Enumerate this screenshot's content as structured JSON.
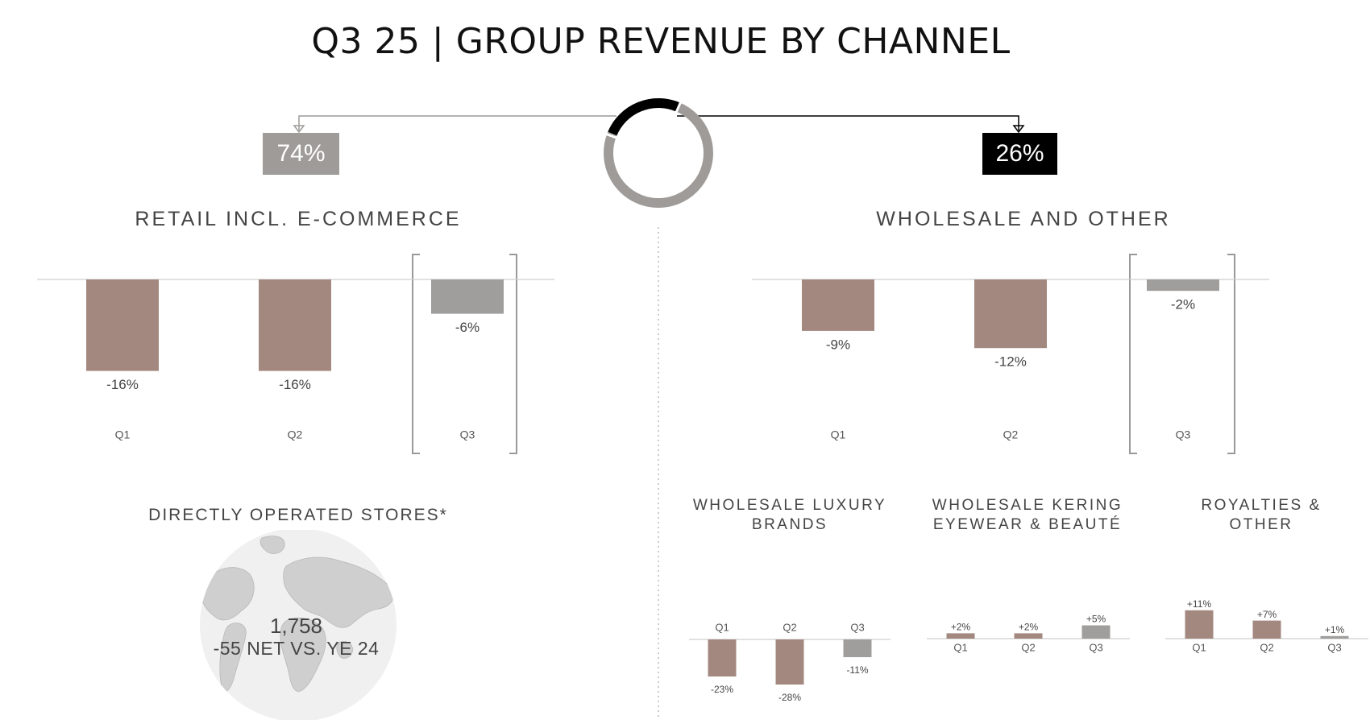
{
  "title": "Q3 25 | GROUP REVENUE BY CHANNEL",
  "colors": {
    "past": "#a3887f",
    "current": "#a09e9c",
    "retail_share": "#9e9b98",
    "wholesale_share": "#000000"
  },
  "split": {
    "retail_pct": "74%",
    "wholesale_pct": "26%",
    "retail_share": 74,
    "wholesale_share": 26
  },
  "retail": {
    "title": "RETAIL INCL. E-COMMERCE"
  },
  "wholesale": {
    "title": "WHOLESALE AND OTHER"
  },
  "stores": {
    "title": "DIRECTLY OPERATED STORES*",
    "count": "1,758",
    "net": "-55 NET VS. YE 24"
  },
  "sub": {
    "luxury": "WHOLESALE LUXURY BRANDS",
    "eyewear": "WHOLESALE KERING EYEWEAR & BEAUTÉ",
    "royalties": "ROYALTIES & OTHER"
  },
  "chart_data": [
    {
      "type": "bar",
      "name_ref": "retail",
      "categories": [
        "Q1",
        "Q2",
        "Q3"
      ],
      "values": [
        -16,
        -16,
        -6
      ],
      "labels": [
        "-16%",
        "-16%",
        "-6%"
      ],
      "highlight": "Q3"
    },
    {
      "type": "bar",
      "name_ref": "wholesale",
      "categories": [
        "Q1",
        "Q2",
        "Q3"
      ],
      "values": [
        -9,
        -12,
        -2
      ],
      "labels": [
        "-9%",
        "-12%",
        "-2%"
      ],
      "highlight": "Q3"
    },
    {
      "type": "bar",
      "name_ref": "luxury",
      "categories": [
        "Q1",
        "Q2",
        "Q3"
      ],
      "values": [
        -23,
        -28,
        -11
      ],
      "labels": [
        "-23%",
        "-28%",
        "-11%"
      ]
    },
    {
      "type": "bar",
      "name_ref": "eyewear",
      "categories": [
        "Q1",
        "Q2",
        "Q3"
      ],
      "values": [
        2,
        2,
        5
      ],
      "labels": [
        "+2%",
        "+2%",
        "+5%"
      ]
    },
    {
      "type": "bar",
      "name_ref": "royalties",
      "categories": [
        "Q1",
        "Q2",
        "Q3"
      ],
      "values": [
        11,
        7,
        1
      ],
      "labels": [
        "+11%",
        "+7%",
        "+1%"
      ]
    }
  ]
}
